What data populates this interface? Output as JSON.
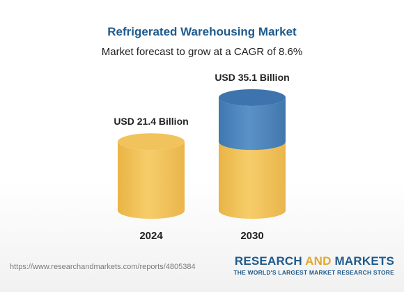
{
  "header": {
    "title": "Refrigerated Warehousing Market",
    "subtitle": "Market forecast to grow at a CAGR of 8.6%"
  },
  "chart_data": {
    "type": "bar",
    "style": "3d-cylinder",
    "title": "Refrigerated Warehousing Market",
    "subtitle": "Market forecast to grow at a CAGR of 8.6%",
    "categories": [
      "2024",
      "2030"
    ],
    "values": [
      21.4,
      35.1
    ],
    "data_labels": [
      "USD 21.4 Billion",
      "USD 35.1 Billion"
    ],
    "unit": "USD Billion",
    "base_color": "#f2c35c",
    "growth_color": "#4f86bd",
    "xlabel": "",
    "ylabel": "",
    "grid": false
  },
  "footer": {
    "url": "https://www.researchandmarkets.com/reports/4805384",
    "brand_part1": "RESEARCH ",
    "brand_part2": "AND",
    "brand_part3": " MARKETS",
    "tagline": "THE WORLD'S LARGEST MARKET RESEARCH STORE"
  }
}
